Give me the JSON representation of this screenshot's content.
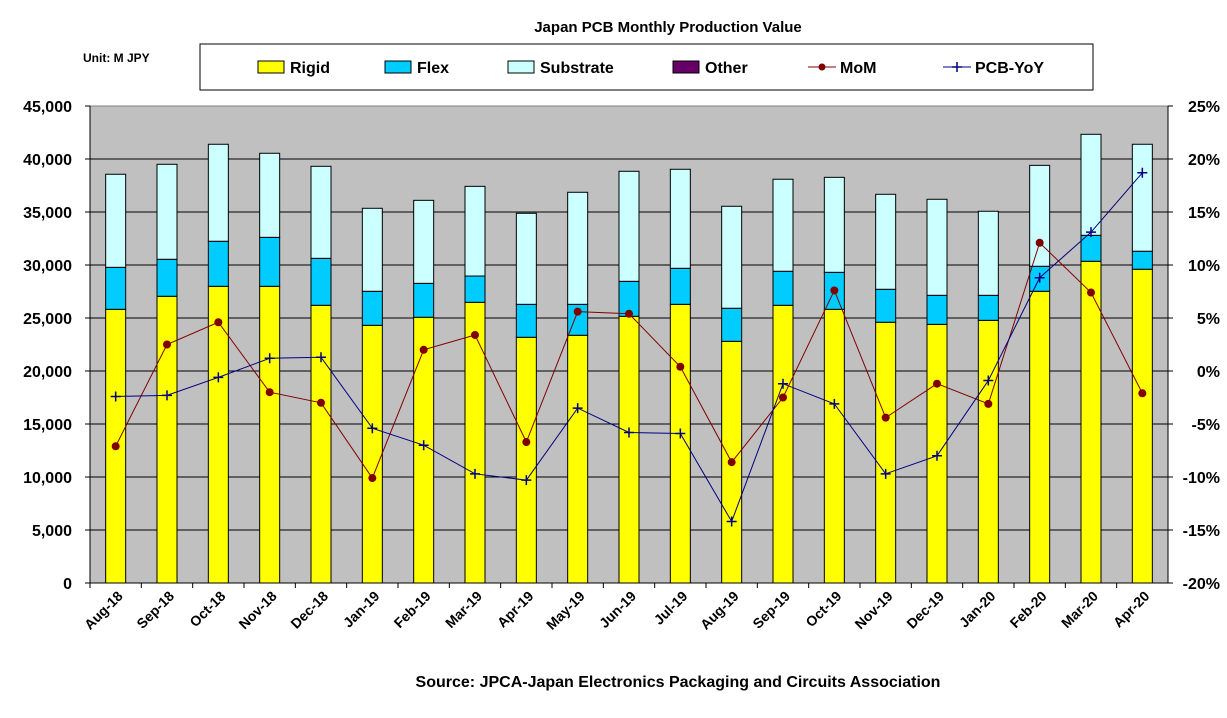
{
  "chart_data": {
    "type": "bar",
    "stacked": true,
    "title": "Japan PCB Monthly Production Value",
    "unit_label": "Unit: M JPY",
    "source": "Source: JPCA-Japan Electronics Packaging and Circuits Association",
    "categories": [
      "Aug-18",
      "Sep-18",
      "Oct-18",
      "Nov-18",
      "Dec-18",
      "Jan-19",
      "Feb-19",
      "Mar-19",
      "Apr-19",
      "May-19",
      "Jun-19",
      "Jul-19",
      "Aug-19",
      "Sep-19",
      "Oct-19",
      "Nov-19",
      "Dec-19",
      "Jan-20",
      "Feb-20",
      "Mar-20",
      "Apr-20"
    ],
    "ylim": [
      0,
      45000
    ],
    "y_ticks": [
      "0",
      "5,000",
      "10,000",
      "15,000",
      "20,000",
      "25,000",
      "30,000",
      "35,000",
      "40,000",
      "45,000"
    ],
    "y2lim": [
      -20,
      25
    ],
    "y2_ticks": [
      "-20%",
      "-15%",
      "-10%",
      "-5%",
      "0%",
      "5%",
      "10%",
      "15%",
      "20%",
      "25%"
    ],
    "grid": true,
    "legend_position": "top",
    "series": [
      {
        "name": "Rigid",
        "kind": "bar",
        "axis": "left",
        "color": "#ffff00",
        "values": [
          25820,
          27050,
          27990,
          27990,
          26200,
          24310,
          25070,
          26480,
          23180,
          23370,
          25160,
          26290,
          22800,
          26200,
          25820,
          24600,
          24400,
          24780,
          27520,
          30350,
          29600
        ]
      },
      {
        "name": "Flex",
        "kind": "bar",
        "axis": "left",
        "color": "#00ccff",
        "values": [
          3960,
          3490,
          4250,
          4620,
          4430,
          3210,
          3200,
          2480,
          3110,
          2920,
          3300,
          3400,
          3120,
          3210,
          3490,
          3110,
          2740,
          2360,
          2360,
          2450,
          1700
        ]
      },
      {
        "name": "Substrate",
        "kind": "bar",
        "axis": "left",
        "color": "#ccffff",
        "values": [
          8780,
          8960,
          9150,
          7930,
          8680,
          7830,
          7830,
          8460,
          8590,
          10570,
          10380,
          9340,
          9620,
          8680,
          8960,
          8960,
          9060,
          7930,
          9520,
          9530,
          10090
        ]
      },
      {
        "name": "Other",
        "kind": "bar",
        "axis": "left",
        "color": "#660066",
        "values": [
          0,
          0,
          0,
          0,
          0,
          0,
          0,
          0,
          0,
          0,
          0,
          0,
          0,
          0,
          0,
          0,
          0,
          0,
          0,
          0,
          0
        ]
      },
      {
        "name": "MoM",
        "kind": "line",
        "axis": "right",
        "color": "#800000",
        "marker": "circle",
        "values": [
          -7.1,
          2.5,
          4.6,
          -2.0,
          -3.0,
          -10.1,
          2.0,
          3.4,
          -6.7,
          5.6,
          5.4,
          0.4,
          -8.6,
          -2.5,
          7.6,
          -4.4,
          -1.2,
          -3.1,
          12.1,
          7.4,
          -2.1
        ]
      },
      {
        "name": "PCB-YoY",
        "kind": "line",
        "axis": "right",
        "color": "#000080",
        "marker": "plus",
        "values": [
          -2.4,
          -2.3,
          -0.6,
          1.2,
          1.3,
          -5.4,
          -7.0,
          -9.7,
          -10.3,
          -3.5,
          -5.8,
          -5.9,
          -14.2,
          -1.2,
          -3.1,
          -9.7,
          -8.0,
          -0.9,
          8.8,
          13.1,
          18.7
        ]
      }
    ]
  }
}
